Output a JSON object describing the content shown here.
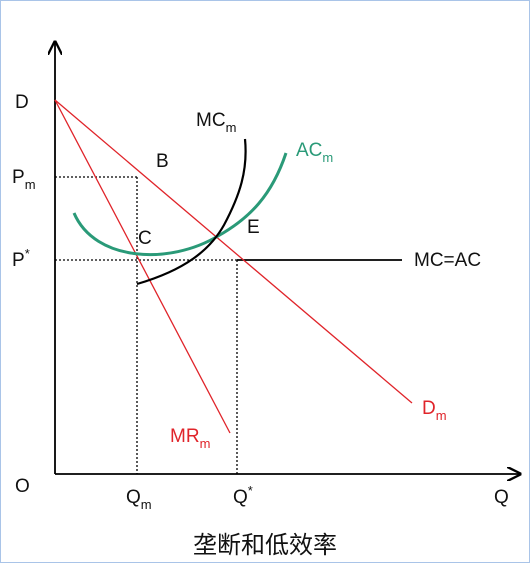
{
  "colors": {
    "axis": "#000000",
    "demand": "#e0242a",
    "ac_curve": "#2a9a78",
    "mc_curve": "#000000",
    "guide": "#000000"
  },
  "labels": {
    "D": "D",
    "Pm_main": "P",
    "Pm_sub": "m",
    "Pstar_main": "P",
    "Pstar_sup": "*",
    "O": "O",
    "Qm_main": "Q",
    "Qm_sub": "m",
    "Qstar_main": "Q",
    "Qstar_sup": "*",
    "Q": "Q",
    "B": "B",
    "C": "C",
    "E": "E",
    "MCm_main": "MC",
    "MCm_sub": "m",
    "ACm_main": "AC",
    "ACm_sub": "m",
    "MCAC": "MC=AC",
    "Dm_main": "D",
    "Dm_sub": "m",
    "MRm_main": "MR",
    "MRm_sub": "m"
  },
  "caption": "垄断和低效率"
}
